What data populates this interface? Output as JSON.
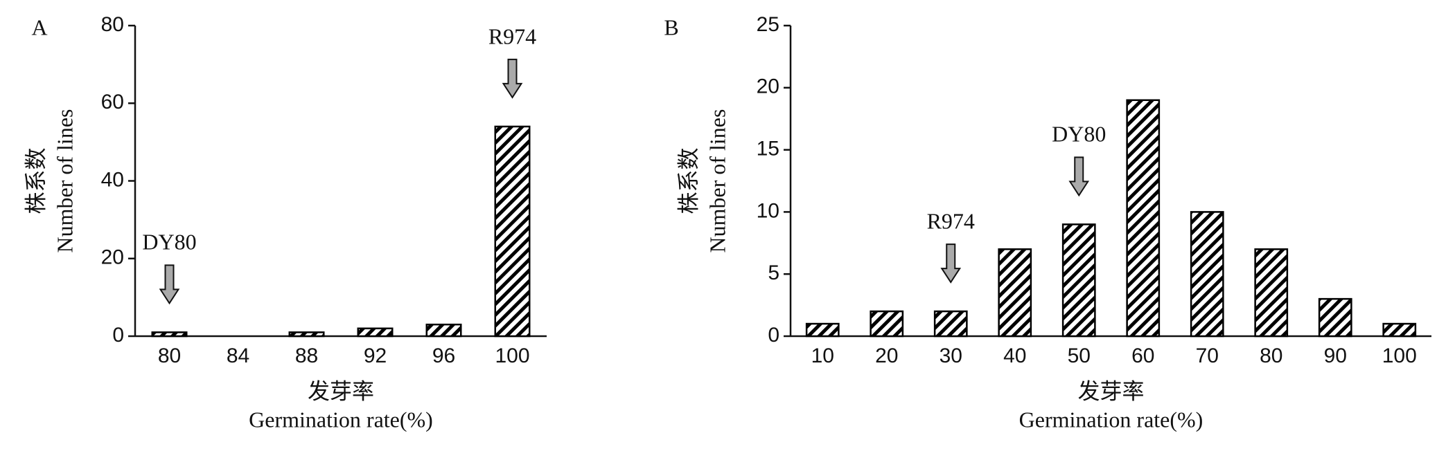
{
  "chart_data": [
    {
      "type": "bar",
      "panel_label": "A",
      "ylabel_cn": "株系数",
      "ylabel": "Number of lines",
      "xlabel_cn": "发芽率",
      "xlabel": "Germination rate(%)",
      "categories": [
        "80",
        "84",
        "88",
        "92",
        "96",
        "100"
      ],
      "values": [
        1,
        0,
        1,
        2,
        3,
        54
      ],
      "ylim": [
        0,
        80
      ],
      "yticks": [
        0,
        20,
        40,
        60,
        80
      ],
      "color": "#000000",
      "annotations": [
        {
          "text": "DY80",
          "category": "80"
        },
        {
          "text": "R974",
          "category": "100"
        }
      ]
    },
    {
      "type": "bar",
      "panel_label": "B",
      "ylabel_cn": "株系数",
      "ylabel": "Number of lines",
      "xlabel_cn": "发芽率",
      "xlabel": "Germination rate(%)",
      "categories": [
        "10",
        "20",
        "30",
        "40",
        "50",
        "60",
        "70",
        "80",
        "90",
        "100"
      ],
      "values": [
        1,
        2,
        2,
        7,
        9,
        19,
        10,
        7,
        3,
        1
      ],
      "ylim": [
        0,
        25
      ],
      "yticks": [
        0,
        5,
        10,
        15,
        20,
        25
      ],
      "color": "#000000",
      "annotations": [
        {
          "text": "R974",
          "category": "30"
        },
        {
          "text": "DY80",
          "category": "50"
        }
      ]
    }
  ]
}
